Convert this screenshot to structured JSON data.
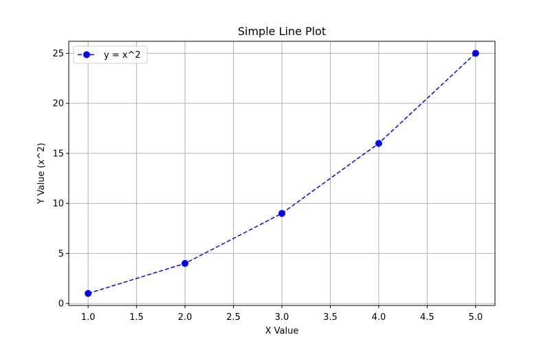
{
  "chart_data": {
    "type": "line",
    "title": "Simple Line Plot",
    "xlabel": "X Value",
    "ylabel": "Y Value (x^2)",
    "xlim": [
      0.8,
      5.2
    ],
    "ylim": [
      -0.2,
      26.2
    ],
    "xticks": [
      1.0,
      1.5,
      2.0,
      2.5,
      3.0,
      3.5,
      4.0,
      4.5,
      5.0
    ],
    "xtick_labels": [
      "1.0",
      "1.5",
      "2.0",
      "2.5",
      "3.0",
      "3.5",
      "4.0",
      "4.5",
      "5.0"
    ],
    "yticks": [
      0,
      5,
      10,
      15,
      20,
      25
    ],
    "ytick_labels": [
      "0",
      "5",
      "10",
      "15",
      "20",
      "25"
    ],
    "grid": true,
    "legend_position": "top-left",
    "series": [
      {
        "name": "y = x^2",
        "color": "#0000ff",
        "line_style": "dashed",
        "marker": "circle",
        "x": [
          1,
          2,
          3,
          4,
          5
        ],
        "y": [
          1,
          4,
          9,
          16,
          25
        ]
      }
    ]
  }
}
